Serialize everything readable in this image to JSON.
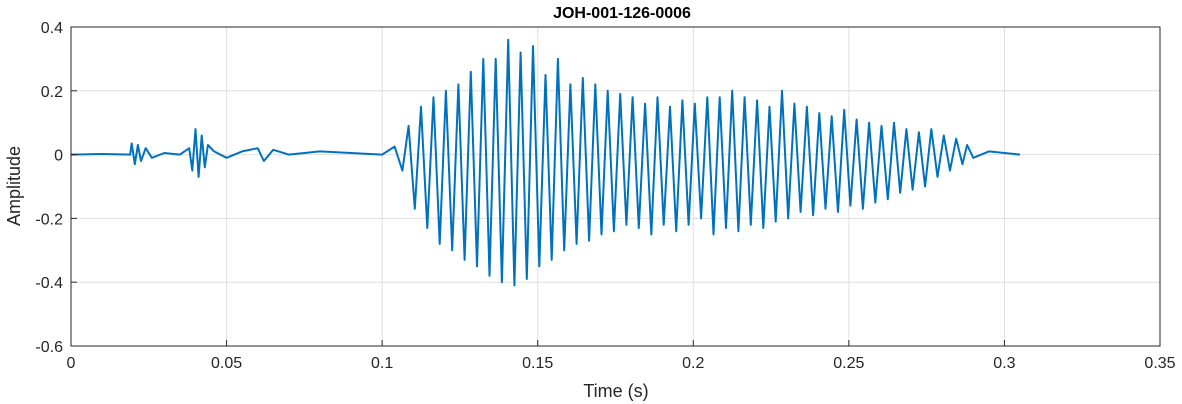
{
  "chart_data": {
    "type": "line",
    "title": "JOH-001-126-0006",
    "xlabel": "Time (s)",
    "ylabel": "Amplitude",
    "xlim": [
      0,
      0.35
    ],
    "ylim": [
      -0.6,
      0.4
    ],
    "xticks": [
      0,
      0.05,
      0.1,
      0.15,
      0.2,
      0.25,
      0.3,
      0.35
    ],
    "xtick_labels": [
      "0",
      "0.05",
      "0.1",
      "0.15",
      "0.2",
      "0.25",
      "0.3",
      "0.35"
    ],
    "yticks": [
      -0.6,
      -0.4,
      -0.2,
      0,
      0.2,
      0.4
    ],
    "ytick_labels": [
      "-0.6",
      "-0.4",
      "-0.2",
      "0",
      "0.2",
      "0.4"
    ],
    "grid": true,
    "line_color": "#0072BD",
    "series": [
      {
        "x": [
          0,
          0.01,
          0.019,
          0.0195,
          0.0205,
          0.0215,
          0.0225,
          0.024,
          0.026,
          0.03,
          0.035,
          0.038,
          0.039,
          0.04,
          0.041,
          0.042,
          0.043,
          0.044,
          0.046,
          0.05,
          0.055,
          0.06,
          0.062,
          0.065,
          0.07,
          0.08,
          0.09,
          0.1,
          0.104,
          0.1065,
          0.1085,
          0.1105,
          0.1125,
          0.1145,
          0.1165,
          0.1185,
          0.1205,
          0.1225,
          0.1245,
          0.1265,
          0.1285,
          0.1305,
          0.1325,
          0.1345,
          0.1365,
          0.1385,
          0.1405,
          0.1425,
          0.1445,
          0.1465,
          0.1485,
          0.1505,
          0.1525,
          0.1545,
          0.1565,
          0.1585,
          0.1605,
          0.1625,
          0.1645,
          0.1665,
          0.1685,
          0.1705,
          0.1725,
          0.1745,
          0.1765,
          0.1785,
          0.1805,
          0.1825,
          0.1845,
          0.1865,
          0.1885,
          0.1905,
          0.1925,
          0.1945,
          0.1965,
          0.1985,
          0.2005,
          0.2025,
          0.2045,
          0.2065,
          0.2085,
          0.2105,
          0.2125,
          0.2145,
          0.2165,
          0.2185,
          0.2205,
          0.2225,
          0.2245,
          0.2265,
          0.2285,
          0.2305,
          0.2325,
          0.2345,
          0.2365,
          0.2385,
          0.2405,
          0.2425,
          0.2445,
          0.2465,
          0.2485,
          0.2505,
          0.2525,
          0.2545,
          0.2565,
          0.2585,
          0.2605,
          0.2625,
          0.2645,
          0.2665,
          0.2685,
          0.2705,
          0.2725,
          0.2745,
          0.2765,
          0.2785,
          0.2805,
          0.2825,
          0.2845,
          0.2865,
          0.288,
          0.29,
          0.295,
          0.3,
          0.305
        ],
        "y": [
          0,
          0.002,
          0,
          0.035,
          -0.03,
          0.03,
          -0.02,
          0.02,
          -0.01,
          0.005,
          0,
          0.02,
          -0.05,
          0.08,
          -0.07,
          0.06,
          -0.04,
          0.03,
          0.01,
          -0.01,
          0.01,
          0.02,
          -0.02,
          0.015,
          0,
          0.01,
          0.005,
          0,
          0.025,
          -0.05,
          0.09,
          -0.17,
          0.15,
          -0.23,
          0.18,
          -0.28,
          0.2,
          -0.3,
          0.22,
          -0.33,
          0.26,
          -0.35,
          0.3,
          -0.38,
          0.3,
          -0.4,
          0.36,
          -0.41,
          0.32,
          -0.39,
          0.34,
          -0.35,
          0.25,
          -0.33,
          0.3,
          -0.3,
          0.22,
          -0.28,
          0.24,
          -0.27,
          0.22,
          -0.25,
          0.2,
          -0.24,
          0.19,
          -0.22,
          0.18,
          -0.23,
          0.16,
          -0.25,
          0.18,
          -0.22,
          0.15,
          -0.24,
          0.17,
          -0.22,
          0.16,
          -0.2,
          0.18,
          -0.25,
          0.18,
          -0.23,
          0.2,
          -0.24,
          0.18,
          -0.22,
          0.17,
          -0.23,
          0.15,
          -0.21,
          0.2,
          -0.2,
          0.16,
          -0.18,
          0.15,
          -0.19,
          0.13,
          -0.17,
          0.12,
          -0.18,
          0.14,
          -0.16,
          0.11,
          -0.17,
          0.1,
          -0.15,
          0.09,
          -0.14,
          0.1,
          -0.12,
          0.08,
          -0.11,
          0.07,
          -0.1,
          0.08,
          -0.07,
          0.06,
          -0.05,
          0.05,
          -0.03,
          0.03,
          -0.01,
          0.01,
          0.005,
          0.0
        ]
      }
    ]
  }
}
